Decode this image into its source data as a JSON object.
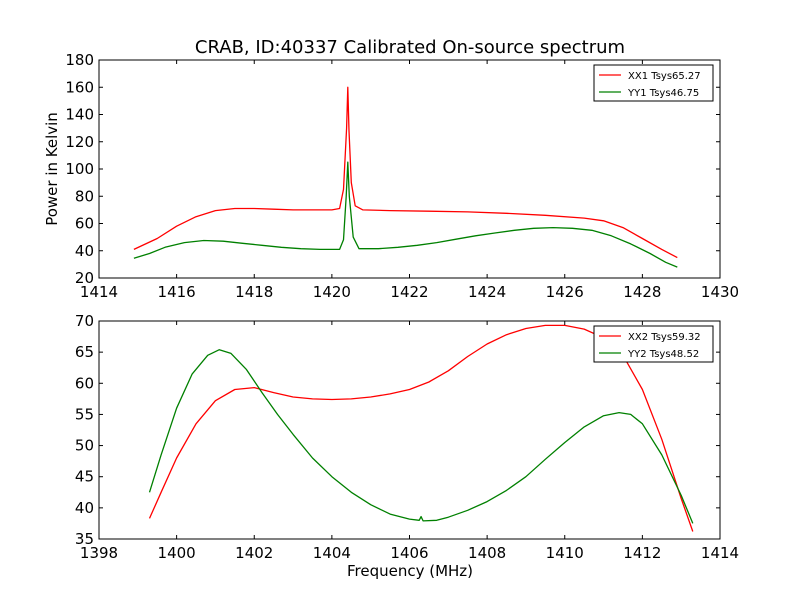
{
  "chart_data": [
    {
      "type": "line",
      "title": "CRAB, ID:40337 Calibrated On-source spectrum",
      "xlabel": "",
      "ylabel": "Power in Kelvin",
      "xlim": [
        1414,
        1430
      ],
      "ylim": [
        20,
        180
      ],
      "xticks": [
        1414,
        1416,
        1418,
        1420,
        1422,
        1424,
        1426,
        1428,
        1430
      ],
      "yticks": [
        20,
        40,
        60,
        80,
        100,
        120,
        140,
        160,
        180
      ],
      "grid": false,
      "legend_position": "top-right",
      "series": [
        {
          "name": "XX1 Tsys65.27",
          "color": "#ff0000",
          "points": [
            [
              1414.9,
              41
            ],
            [
              1415.5,
              49
            ],
            [
              1416.0,
              58
            ],
            [
              1416.5,
              65
            ],
            [
              1417.0,
              69.5
            ],
            [
              1417.5,
              71
            ],
            [
              1418.0,
              71
            ],
            [
              1418.5,
              70.5
            ],
            [
              1419.0,
              70
            ],
            [
              1419.5,
              70
            ],
            [
              1420.0,
              70
            ],
            [
              1420.2,
              71
            ],
            [
              1420.3,
              85
            ],
            [
              1420.38,
              130
            ],
            [
              1420.41,
              160
            ],
            [
              1420.44,
              128
            ],
            [
              1420.5,
              90
            ],
            [
              1420.6,
              73
            ],
            [
              1420.8,
              70
            ],
            [
              1421.5,
              69.5
            ],
            [
              1422.5,
              69
            ],
            [
              1423.5,
              68.5
            ],
            [
              1424.5,
              67.5
            ],
            [
              1425.5,
              66
            ],
            [
              1426.5,
              64
            ],
            [
              1427.0,
              62
            ],
            [
              1427.5,
              57
            ],
            [
              1428.0,
              49
            ],
            [
              1428.5,
              41
            ],
            [
              1428.9,
              35
            ]
          ]
        },
        {
          "name": "YY1 Tsys46.75",
          "color": "#008000",
          "points": [
            [
              1414.9,
              34.5
            ],
            [
              1415.3,
              38
            ],
            [
              1415.7,
              42.5
            ],
            [
              1416.2,
              46
            ],
            [
              1416.7,
              47.5
            ],
            [
              1417.2,
              47
            ],
            [
              1417.7,
              45.5
            ],
            [
              1418.2,
              44
            ],
            [
              1418.7,
              42.5
            ],
            [
              1419.2,
              41.5
            ],
            [
              1419.7,
              41
            ],
            [
              1420.2,
              41
            ],
            [
              1420.3,
              48
            ],
            [
              1420.37,
              80
            ],
            [
              1420.41,
              105
            ],
            [
              1420.45,
              80
            ],
            [
              1420.55,
              50
            ],
            [
              1420.7,
              41.5
            ],
            [
              1421.2,
              41.5
            ],
            [
              1421.7,
              42.5
            ],
            [
              1422.2,
              44
            ],
            [
              1422.7,
              46
            ],
            [
              1423.2,
              48.5
            ],
            [
              1423.7,
              51
            ],
            [
              1424.2,
              53
            ],
            [
              1424.7,
              55
            ],
            [
              1425.2,
              56.5
            ],
            [
              1425.7,
              57
            ],
            [
              1426.2,
              56.5
            ],
            [
              1426.7,
              55
            ],
            [
              1427.2,
              51
            ],
            [
              1427.7,
              45
            ],
            [
              1428.2,
              38
            ],
            [
              1428.6,
              31.5
            ],
            [
              1428.9,
              28
            ]
          ]
        }
      ]
    },
    {
      "type": "line",
      "title": "",
      "xlabel": "Frequency (MHz)",
      "ylabel": "",
      "xlim": [
        1398,
        1414
      ],
      "ylim": [
        35,
        70
      ],
      "xticks": [
        1398,
        1400,
        1402,
        1404,
        1406,
        1408,
        1410,
        1412,
        1414
      ],
      "yticks": [
        35,
        40,
        45,
        50,
        55,
        60,
        65,
        70
      ],
      "grid": false,
      "legend_position": "top-right",
      "series": [
        {
          "name": "XX2 Tsys59.32",
          "color": "#ff0000",
          "points": [
            [
              1399.3,
              38.3
            ],
            [
              1399.6,
              42.5
            ],
            [
              1400.0,
              48
            ],
            [
              1400.5,
              53.5
            ],
            [
              1401.0,
              57.2
            ],
            [
              1401.5,
              59
            ],
            [
              1402.0,
              59.3
            ],
            [
              1402.5,
              58.5
            ],
            [
              1403.0,
              57.8
            ],
            [
              1403.5,
              57.5
            ],
            [
              1404.0,
              57.4
            ],
            [
              1404.5,
              57.5
            ],
            [
              1405.0,
              57.8
            ],
            [
              1405.5,
              58.3
            ],
            [
              1406.0,
              59
            ],
            [
              1406.5,
              60.2
            ],
            [
              1407.0,
              62
            ],
            [
              1407.5,
              64.3
            ],
            [
              1408.0,
              66.3
            ],
            [
              1408.5,
              67.8
            ],
            [
              1409.0,
              68.8
            ],
            [
              1409.5,
              69.3
            ],
            [
              1410.0,
              69.3
            ],
            [
              1410.5,
              68.7
            ],
            [
              1411.0,
              67.3
            ],
            [
              1411.5,
              64.5
            ],
            [
              1412.0,
              59
            ],
            [
              1412.5,
              51
            ],
            [
              1413.0,
              41.5
            ],
            [
              1413.3,
              36.2
            ]
          ]
        },
        {
          "name": "YY2 Tsys48.52",
          "color": "#008000",
          "points": [
            [
              1399.3,
              42.5
            ],
            [
              1399.6,
              48.5
            ],
            [
              1400.0,
              56
            ],
            [
              1400.4,
              61.5
            ],
            [
              1400.8,
              64.5
            ],
            [
              1401.1,
              65.4
            ],
            [
              1401.4,
              64.8
            ],
            [
              1401.8,
              62.2
            ],
            [
              1402.2,
              58.5
            ],
            [
              1402.6,
              55
            ],
            [
              1403.0,
              51.8
            ],
            [
              1403.5,
              48
            ],
            [
              1404.0,
              45
            ],
            [
              1404.5,
              42.5
            ],
            [
              1405.0,
              40.5
            ],
            [
              1405.5,
              39
            ],
            [
              1406.0,
              38.2
            ],
            [
              1406.25,
              38
            ],
            [
              1406.3,
              38.6
            ],
            [
              1406.35,
              37.9
            ],
            [
              1406.7,
              38
            ],
            [
              1407.0,
              38.5
            ],
            [
              1407.5,
              39.6
            ],
            [
              1408.0,
              41
            ],
            [
              1408.5,
              42.8
            ],
            [
              1409.0,
              45
            ],
            [
              1409.5,
              47.8
            ],
            [
              1410.0,
              50.5
            ],
            [
              1410.5,
              53
            ],
            [
              1411.0,
              54.8
            ],
            [
              1411.4,
              55.3
            ],
            [
              1411.7,
              55
            ],
            [
              1412.0,
              53.5
            ],
            [
              1412.5,
              48.5
            ],
            [
              1413.0,
              42
            ],
            [
              1413.3,
              37.5
            ]
          ]
        }
      ]
    }
  ]
}
